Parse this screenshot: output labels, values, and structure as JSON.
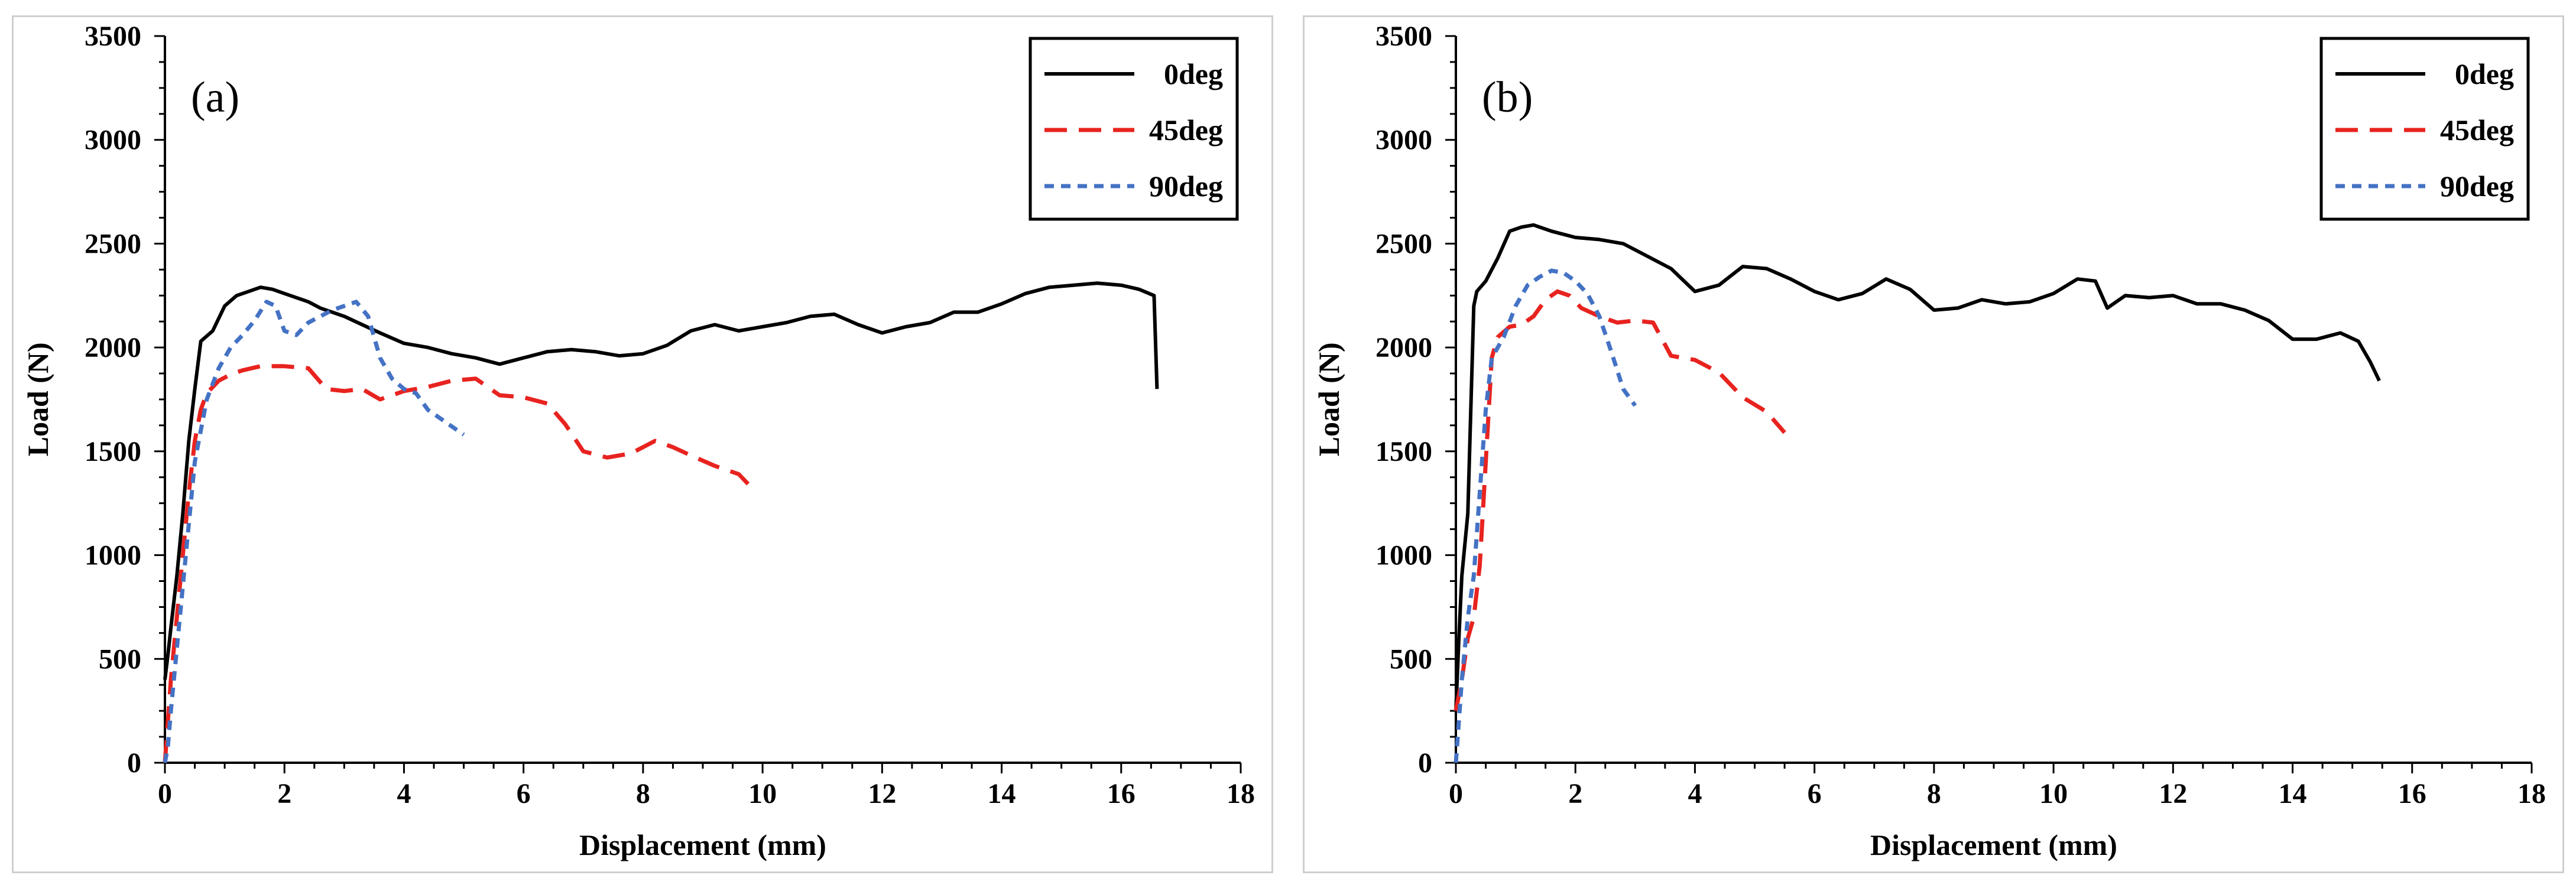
{
  "chart_data": [
    {
      "type": "line",
      "panel_label": "(a)",
      "xlabel": "Displacement (mm)",
      "ylabel": "Load (N)",
      "xlim": [
        0,
        18
      ],
      "ylim": [
        0,
        3500
      ],
      "xticks": [
        0,
        2,
        4,
        6,
        8,
        10,
        12,
        14,
        16,
        18
      ],
      "yticks": [
        0,
        500,
        1000,
        1500,
        2000,
        2500,
        3000,
        3500
      ],
      "legend_position": "top-right",
      "series": [
        {
          "name": "0deg",
          "color": "#000000",
          "style": "solid",
          "x": [
            0,
            0.05,
            0.1,
            0.2,
            0.3,
            0.4,
            0.5,
            0.6,
            0.8,
            1.0,
            1.2,
            1.4,
            1.6,
            1.8,
            2.0,
            2.2,
            2.4,
            2.6,
            2.8,
            3.0,
            3.3,
            3.6,
            4.0,
            4.4,
            4.8,
            5.2,
            5.6,
            6.0,
            6.4,
            6.8,
            7.2,
            7.6,
            8.0,
            8.4,
            8.8,
            9.2,
            9.6,
            10.0,
            10.4,
            10.8,
            11.2,
            11.6,
            12.0,
            12.4,
            12.8,
            13.2,
            13.6,
            14.0,
            14.4,
            14.8,
            15.2,
            15.6,
            16.0,
            16.3,
            16.55,
            16.6
          ],
          "y": [
            400,
            520,
            650,
            900,
            1200,
            1550,
            1800,
            2030,
            2080,
            2200,
            2250,
            2270,
            2290,
            2280,
            2260,
            2240,
            2220,
            2190,
            2170,
            2150,
            2110,
            2070,
            2020,
            2000,
            1970,
            1950,
            1920,
            1950,
            1980,
            1990,
            1980,
            1960,
            1970,
            2010,
            2080,
            2110,
            2080,
            2100,
            2120,
            2150,
            2160,
            2110,
            2070,
            2100,
            2120,
            2170,
            2170,
            2210,
            2260,
            2290,
            2300,
            2310,
            2300,
            2280,
            2250,
            1800
          ]
        },
        {
          "name": "45deg",
          "color": "#e8231f",
          "style": "dashed",
          "x": [
            0,
            0.1,
            0.2,
            0.3,
            0.4,
            0.5,
            0.6,
            0.7,
            0.9,
            1.1,
            1.3,
            1.6,
            2.0,
            2.4,
            2.7,
            3.0,
            3.3,
            3.6,
            4.0,
            4.4,
            4.8,
            5.2,
            5.6,
            6.0,
            6.4,
            6.7,
            7.0,
            7.4,
            7.8,
            8.2,
            8.5,
            8.8,
            9.2,
            9.6,
            9.8
          ],
          "y": [
            0,
            400,
            700,
            1000,
            1300,
            1550,
            1700,
            1780,
            1840,
            1870,
            1890,
            1910,
            1910,
            1900,
            1800,
            1790,
            1800,
            1750,
            1790,
            1810,
            1840,
            1850,
            1770,
            1760,
            1730,
            1630,
            1500,
            1470,
            1490,
            1550,
            1520,
            1480,
            1430,
            1390,
            1330
          ]
        },
        {
          "name": "90deg",
          "color": "#4472c4",
          "style": "dotted",
          "x": [
            0,
            0.05,
            0.1,
            0.2,
            0.3,
            0.4,
            0.5,
            0.7,
            0.9,
            1.1,
            1.3,
            1.5,
            1.7,
            1.85,
            2.0,
            2.2,
            2.4,
            2.6,
            2.8,
            3.0,
            3.2,
            3.4,
            3.6,
            3.8,
            4.0,
            4.2,
            4.4,
            4.6,
            4.8,
            5.0
          ],
          "y": [
            0,
            80,
            250,
            550,
            850,
            1150,
            1450,
            1750,
            1900,
            2000,
            2060,
            2130,
            2220,
            2200,
            2080,
            2060,
            2120,
            2150,
            2180,
            2200,
            2220,
            2150,
            1950,
            1850,
            1800,
            1780,
            1700,
            1660,
            1620,
            1580
          ]
        }
      ]
    },
    {
      "type": "line",
      "panel_label": "(b)",
      "xlabel": "Displacement (mm)",
      "ylabel": "Load (N)",
      "xlim": [
        0,
        18
      ],
      "ylim": [
        0,
        3500
      ],
      "xticks": [
        0,
        2,
        4,
        6,
        8,
        10,
        12,
        14,
        16,
        18
      ],
      "yticks": [
        0,
        500,
        1000,
        1500,
        2000,
        2500,
        3000,
        3500
      ],
      "legend_position": "top-right",
      "series": [
        {
          "name": "0deg",
          "color": "#000000",
          "style": "solid",
          "x": [
            0,
            0.05,
            0.1,
            0.2,
            0.3,
            0.35,
            0.5,
            0.7,
            0.9,
            1.1,
            1.3,
            1.6,
            2.0,
            2.4,
            2.8,
            3.2,
            3.6,
            4.0,
            4.4,
            4.8,
            5.2,
            5.6,
            6.0,
            6.4,
            6.8,
            7.2,
            7.6,
            8.0,
            8.4,
            8.8,
            9.2,
            9.6,
            10.0,
            10.4,
            10.7,
            10.9,
            11.2,
            11.6,
            12.0,
            12.4,
            12.8,
            13.2,
            13.6,
            14.0,
            14.4,
            14.8,
            15.1,
            15.3,
            15.45
          ],
          "y": [
            250,
            600,
            900,
            1200,
            2200,
            2270,
            2320,
            2430,
            2560,
            2580,
            2590,
            2560,
            2530,
            2520,
            2500,
            2440,
            2380,
            2270,
            2300,
            2390,
            2380,
            2330,
            2270,
            2230,
            2260,
            2330,
            2280,
            2180,
            2190,
            2230,
            2210,
            2220,
            2260,
            2330,
            2320,
            2190,
            2250,
            2240,
            2250,
            2210,
            2210,
            2180,
            2130,
            2040,
            2040,
            2070,
            2030,
            1930,
            1840
          ]
        },
        {
          "name": "45deg",
          "color": "#e8231f",
          "style": "dashed",
          "x": [
            0,
            0.1,
            0.2,
            0.3,
            0.4,
            0.5,
            0.6,
            0.7,
            0.9,
            1.1,
            1.3,
            1.5,
            1.7,
            1.9,
            2.1,
            2.4,
            2.7,
            3.0,
            3.3,
            3.6,
            4.0,
            4.4,
            4.8,
            5.2,
            5.5
          ],
          "y": [
            250,
            400,
            600,
            700,
            950,
            1450,
            1950,
            2050,
            2100,
            2110,
            2150,
            2230,
            2270,
            2250,
            2190,
            2150,
            2120,
            2130,
            2120,
            1960,
            1940,
            1880,
            1760,
            1690,
            1590
          ]
        },
        {
          "name": "90deg",
          "color": "#4472c4",
          "style": "dotted",
          "x": [
            0,
            0.05,
            0.1,
            0.2,
            0.3,
            0.4,
            0.5,
            0.6,
            0.8,
            1.0,
            1.2,
            1.4,
            1.6,
            1.8,
            2.0,
            2.2,
            2.4,
            2.6,
            2.8,
            3.0
          ],
          "y": [
            0,
            200,
            400,
            700,
            900,
            1300,
            1700,
            1950,
            2050,
            2200,
            2300,
            2340,
            2370,
            2360,
            2320,
            2260,
            2150,
            1980,
            1800,
            1720
          ]
        }
      ]
    }
  ]
}
